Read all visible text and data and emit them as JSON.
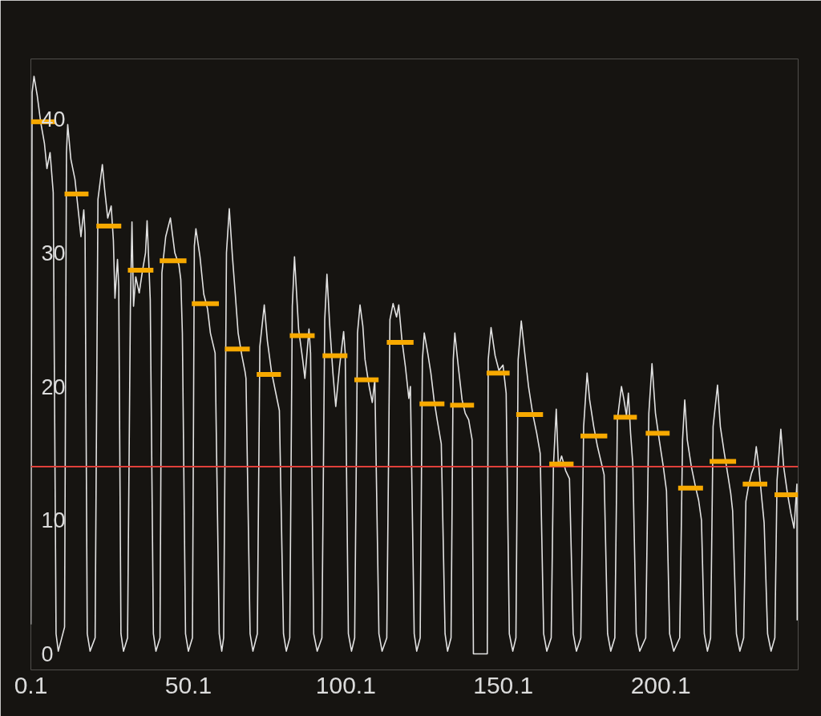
{
  "chart_data": {
    "type": "line",
    "xlim": [
      0.1,
      243.7
    ],
    "ylim": [
      -1.2,
      44.5
    ],
    "xticks": [
      0.1,
      50.1,
      100.1,
      150.1,
      200.1
    ],
    "yticks": [
      0,
      10,
      20,
      30,
      40
    ],
    "ref_lines": [
      {
        "axis": "y",
        "value": 14.0,
        "color": "#e0403a"
      }
    ],
    "series": [
      {
        "color": "#e2e2e2",
        "x": [
          0.1,
          0.5,
          1.1,
          2.1,
          3.2,
          4.4,
          5.2,
          6.2,
          7.2,
          8.1,
          8.8,
          10.8,
          11.4,
          11.8,
          12.8,
          14.1,
          15.4,
          16.0,
          16.9,
          17.3,
          18.0,
          18.9,
          20.5,
          21.4,
          22.8,
          23.5,
          24.5,
          25.6,
          26.3,
          26.8,
          27.6,
          28.0,
          28.7,
          29.5,
          30.8,
          31.7,
          32.2,
          32.7,
          33.4,
          34.5,
          35.5,
          36.5,
          37.0,
          37.5,
          38.0,
          39.0,
          39.8,
          41.1,
          41.7,
          42.9,
          44.4,
          45.8,
          47.1,
          47.7,
          48.2,
          49.2,
          50.1,
          51.4,
          52.0,
          52.5,
          53.8,
          55.0,
          56.2,
          57.1,
          58.6,
          59.9,
          60.7,
          61.3,
          62.2,
          63.1,
          64.1,
          65.0,
          65.9,
          67.1,
          68.1,
          68.4,
          69.7,
          70.6,
          72.0,
          72.8,
          74.2,
          75.2,
          76.5,
          77.7,
          79.0,
          80.3,
          81.2,
          82.3,
          83.1,
          83.8,
          85.1,
          86.4,
          87.1,
          88.4,
          88.9,
          89.9,
          91.0,
          92.5,
          93.4,
          94.1,
          95.0,
          96.0,
          96.9,
          98.1,
          99.4,
          99.9,
          100.9,
          101.9,
          102.9,
          103.8,
          104.6,
          105.5,
          106.2,
          107.5,
          108.5,
          109.3,
          110.6,
          111.6,
          113.1,
          114.1,
          115.1,
          116.2,
          116.9,
          117.9,
          119.0,
          120.1,
          120.6,
          121.8,
          122.6,
          123.7,
          124.4,
          125.0,
          126.1,
          127.1,
          128.1,
          129.1,
          130.4,
          131.6,
          132.4,
          133.5,
          134.2,
          134.7,
          135.8,
          137.0,
          138.0,
          139.1,
          140.2,
          140.6,
          145.0,
          145.3,
          146.2,
          147.5,
          148.7,
          150.0,
          151.0,
          152.0,
          153.1,
          154.1,
          154.8,
          155.8,
          156.9,
          158.1,
          159.4,
          160.7,
          161.8,
          162.9,
          163.9,
          165.3,
          166.0,
          166.9,
          167.6,
          168.6,
          169.9,
          171.1,
          172.3,
          173.3,
          174.7,
          175.6,
          176.7,
          177.5,
          178.8,
          180.0,
          181.3,
          182.1,
          183.2,
          184.2,
          185.5,
          186.3,
          187.6,
          188.4,
          189.2,
          189.8,
          190.5,
          191.2,
          192.3,
          193.4,
          195.3,
          196.3,
          197.3,
          198.4,
          199.6,
          200.9,
          201.9,
          202.9,
          204.2,
          206.1,
          207.0,
          207.7,
          208.5,
          209.8,
          211.1,
          212.1,
          213.0,
          213.9,
          214.9,
          215.9,
          216.7,
          218.1,
          219.0,
          220.2,
          221.3,
          222.3,
          222.9,
          224.1,
          225.2,
          226.4,
          227.1,
          227.9,
          228.9,
          229.7,
          230.4,
          231.2,
          232.2,
          232.9,
          234.0,
          235.1,
          236.3,
          237.0,
          238.2,
          239.1,
          240.3,
          241.4,
          242.4,
          243.3,
          243.4
        ],
        "values": [
          2.2,
          42.0,
          43.2,
          41.8,
          39.8,
          38.2,
          36.3,
          37.5,
          34.5,
          1.5,
          0.2,
          2.0,
          37.5,
          39.6,
          37.0,
          35.5,
          32.6,
          31.2,
          33.2,
          31.5,
          1.5,
          0.2,
          1.2,
          34.0,
          36.6,
          34.8,
          32.6,
          33.5,
          30.9,
          26.6,
          29.5,
          27.5,
          1.5,
          0.2,
          1.2,
          26.0,
          32.3,
          26.0,
          28.2,
          27.0,
          28.6,
          30.0,
          32.4,
          29.5,
          26.5,
          1.5,
          0.2,
          1.2,
          28.5,
          31.2,
          32.6,
          30.0,
          29.1,
          28.0,
          24.0,
          1.5,
          0.2,
          1.2,
          30.5,
          31.8,
          29.7,
          26.9,
          25.8,
          24.0,
          22.5,
          1.5,
          0.2,
          1.2,
          30.0,
          33.3,
          29.7,
          26.9,
          24.0,
          22.3,
          21.1,
          20.6,
          1.5,
          0.2,
          1.5,
          23.0,
          26.1,
          23.4,
          21.1,
          19.7,
          18.2,
          1.5,
          0.2,
          1.2,
          26.0,
          29.7,
          24.3,
          22.0,
          20.6,
          24.3,
          22.5,
          1.5,
          0.2,
          1.2,
          25.0,
          28.4,
          24.5,
          21.0,
          18.5,
          21.5,
          24.1,
          22.5,
          1.5,
          0.2,
          1.2,
          24.0,
          26.1,
          24.5,
          22.0,
          20.0,
          18.8,
          20.5,
          1.5,
          0.2,
          1.2,
          25.0,
          26.2,
          25.2,
          26.1,
          23.5,
          21.5,
          19.1,
          20.0,
          1.5,
          0.2,
          1.2,
          22.0,
          24.0,
          22.5,
          21.0,
          19.0,
          17.5,
          15.7,
          1.5,
          0.2,
          1.2,
          22.0,
          24.0,
          21.5,
          19.0,
          18.0,
          17.5,
          16.0,
          0.0,
          0.0,
          22.0,
          24.4,
          22.3,
          21.2,
          21.6,
          19.5,
          1.5,
          0.2,
          1.2,
          22.0,
          24.9,
          22.5,
          20.0,
          18.0,
          16.5,
          15.0,
          1.5,
          0.2,
          1.2,
          14.0,
          18.3,
          14.0,
          14.8,
          13.7,
          13.1,
          1.5,
          0.2,
          1.2,
          17.0,
          21.0,
          19.0,
          17.0,
          15.5,
          14.2,
          13.4,
          1.5,
          0.2,
          1.2,
          17.5,
          20.0,
          19.0,
          17.8,
          19.5,
          16.5,
          14.2,
          1.5,
          0.2,
          1.2,
          18.0,
          21.7,
          18.0,
          16.0,
          14.0,
          12.2,
          1.5,
          0.2,
          1.2,
          16.0,
          19.0,
          16.0,
          14.0,
          12.5,
          11.5,
          10.0,
          1.5,
          0.2,
          1.2,
          17.0,
          20.1,
          17.0,
          15.1,
          13.5,
          12.0,
          10.7,
          1.5,
          0.2,
          1.2,
          11.4,
          12.5,
          13.5,
          14.0,
          15.5,
          14.0,
          11.5,
          9.8,
          1.5,
          0.2,
          1.2,
          13.0,
          16.8,
          14.0,
          12.0,
          10.5,
          9.4,
          12.7,
          2.5
        ]
      },
      {
        "type": "line",
        "color": "#f7a900",
        "x": [
          0.2,
          8.1
        ],
        "values": [
          39.8,
          39.8
        ]
      },
      {
        "type": "line",
        "color": "#f7a900",
        "x": [
          10.8,
          18.4
        ],
        "values": [
          34.4,
          34.4
        ]
      },
      {
        "type": "line",
        "color": "#f7a900",
        "x": [
          20.9,
          28.8
        ],
        "values": [
          32.0,
          32.0
        ]
      },
      {
        "type": "line",
        "color": "#f7a900",
        "x": [
          30.9,
          39.0
        ],
        "values": [
          28.7,
          28.7
        ]
      },
      {
        "type": "line",
        "color": "#f7a900",
        "x": [
          41.0,
          49.5
        ],
        "values": [
          29.4,
          29.4
        ]
      },
      {
        "type": "line",
        "color": "#f7a900",
        "x": [
          51.2,
          59.8
        ],
        "values": [
          26.2,
          26.2
        ]
      },
      {
        "type": "line",
        "color": "#f7a900",
        "x": [
          61.7,
          69.6
        ],
        "values": [
          22.8,
          22.8
        ]
      },
      {
        "type": "line",
        "color": "#f7a900",
        "x": [
          71.8,
          79.5
        ],
        "values": [
          20.9,
          20.9
        ]
      },
      {
        "type": "line",
        "color": "#f7a900",
        "x": [
          82.3,
          90.2
        ],
        "values": [
          23.8,
          23.8
        ]
      },
      {
        "type": "line",
        "color": "#f7a900",
        "x": [
          92.7,
          100.6
        ],
        "values": [
          22.3,
          22.3
        ]
      },
      {
        "type": "line",
        "color": "#f7a900",
        "x": [
          102.8,
          110.5
        ],
        "values": [
          20.5,
          20.5
        ]
      },
      {
        "type": "line",
        "color": "#f7a900",
        "x": [
          113.1,
          121.6
        ],
        "values": [
          23.3,
          23.3
        ]
      },
      {
        "type": "line",
        "color": "#f7a900",
        "x": [
          123.5,
          131.4
        ],
        "values": [
          18.7,
          18.7
        ]
      },
      {
        "type": "line",
        "color": "#f7a900",
        "x": [
          133.2,
          140.8
        ],
        "values": [
          18.6,
          18.6
        ]
      },
      {
        "type": "line",
        "color": "#f7a900",
        "x": [
          144.8,
          152.1
        ],
        "values": [
          21.0,
          21.0
        ]
      },
      {
        "type": "line",
        "color": "#f7a900",
        "x": [
          154.2,
          162.7
        ],
        "values": [
          17.9,
          17.9
        ]
      },
      {
        "type": "line",
        "color": "#f7a900",
        "x": [
          164.7,
          172.4
        ],
        "values": [
          14.2,
          14.2
        ]
      },
      {
        "type": "line",
        "color": "#f7a900",
        "x": [
          174.6,
          183.1
        ],
        "values": [
          16.3,
          16.3
        ]
      },
      {
        "type": "line",
        "color": "#f7a900",
        "x": [
          185.1,
          192.5
        ],
        "values": [
          17.7,
          17.7
        ]
      },
      {
        "type": "line",
        "color": "#f7a900",
        "x": [
          195.3,
          202.9
        ],
        "values": [
          16.5,
          16.5
        ]
      },
      {
        "type": "line",
        "color": "#f7a900",
        "x": [
          205.6,
          213.5
        ],
        "values": [
          12.4,
          12.4
        ]
      },
      {
        "type": "line",
        "color": "#f7a900",
        "x": [
          215.6,
          224.0
        ],
        "values": [
          14.4,
          14.4
        ]
      },
      {
        "type": "line",
        "color": "#f7a900",
        "x": [
          226.1,
          233.9
        ],
        "values": [
          12.7,
          12.7
        ]
      },
      {
        "type": "line",
        "color": "#f7a900",
        "x": [
          236.2,
          243.6
        ],
        "values": [
          11.9,
          11.9
        ]
      }
    ]
  }
}
